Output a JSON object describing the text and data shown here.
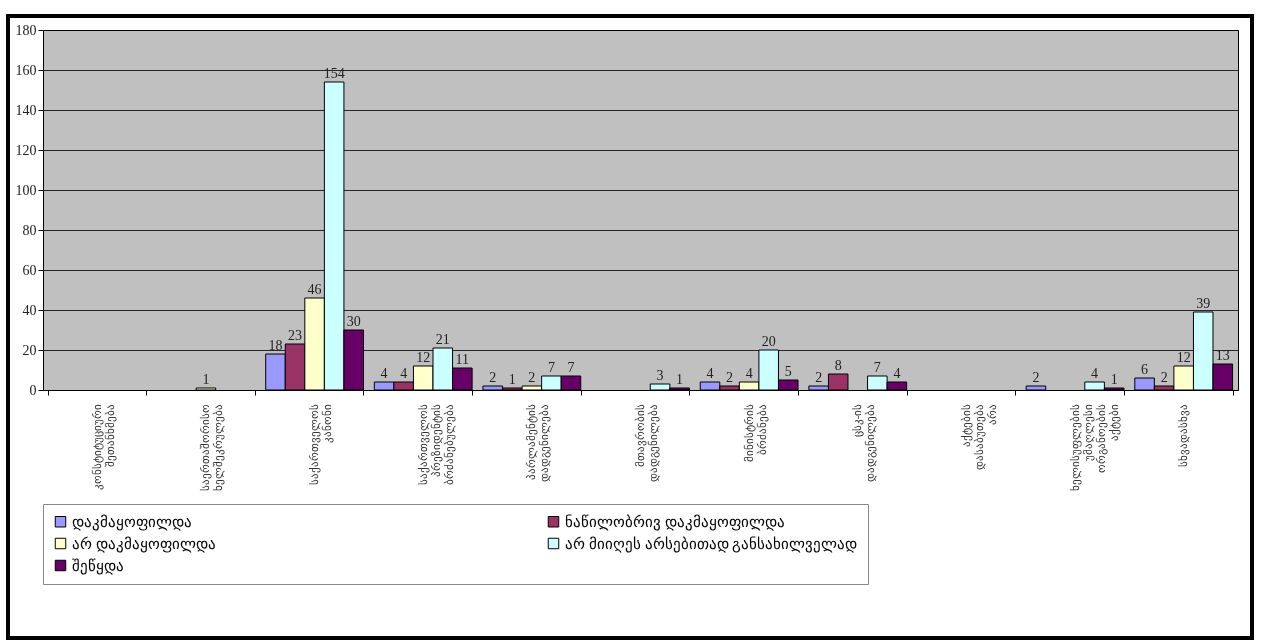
{
  "chart_data": {
    "type": "bar",
    "categories": [
      "კონსტიტუციური შეთანხმება",
      "საერთაშორისო ხელშეკრულება",
      "საქართველოს კანონი",
      "საქართველოს პრეზიდენტის ბრძანებულება",
      "პარლამენტის დადგენილება",
      "მთავრობის დადგენილება",
      "მინისტრის ბრძანება",
      "ცსკ-ის დადგენილება",
      "აქტების დასაბუთება არა",
      "ხელისუფლების უმაღლესი ორგანოების აქტები",
      "სხვადასხვა"
    ],
    "series": [
      {
        "name": "დაკმაყოფილდა",
        "color": "#9999ff",
        "values": [
          null,
          null,
          18,
          4,
          2,
          null,
          4,
          2,
          null,
          2,
          6
        ]
      },
      {
        "name": "ნაწილობრივ დაკმაყოფილდა",
        "color": "#993366",
        "values": [
          null,
          null,
          23,
          4,
          1,
          null,
          2,
          8,
          null,
          null,
          2
        ]
      },
      {
        "name": "არ დაკმაყოფილდა",
        "color": "#ffffcc",
        "values": [
          null,
          1,
          46,
          12,
          2,
          null,
          4,
          null,
          null,
          null,
          12
        ]
      },
      {
        "name": "არ მიიღეს არსებითად განსახილველად",
        "color": "#ccffff",
        "values": [
          null,
          null,
          154,
          21,
          7,
          3,
          20,
          7,
          null,
          4,
          39
        ]
      },
      {
        "name": "შეწყდა",
        "color": "#660066",
        "values": [
          null,
          null,
          30,
          11,
          7,
          1,
          5,
          4,
          null,
          1,
          13
        ]
      }
    ],
    "ylim": [
      0,
      180
    ],
    "yticks": [
      0,
      20,
      40,
      60,
      80,
      100,
      120,
      140,
      160,
      180
    ],
    "grid": "y",
    "legend": "bottom",
    "data_labels": true
  }
}
